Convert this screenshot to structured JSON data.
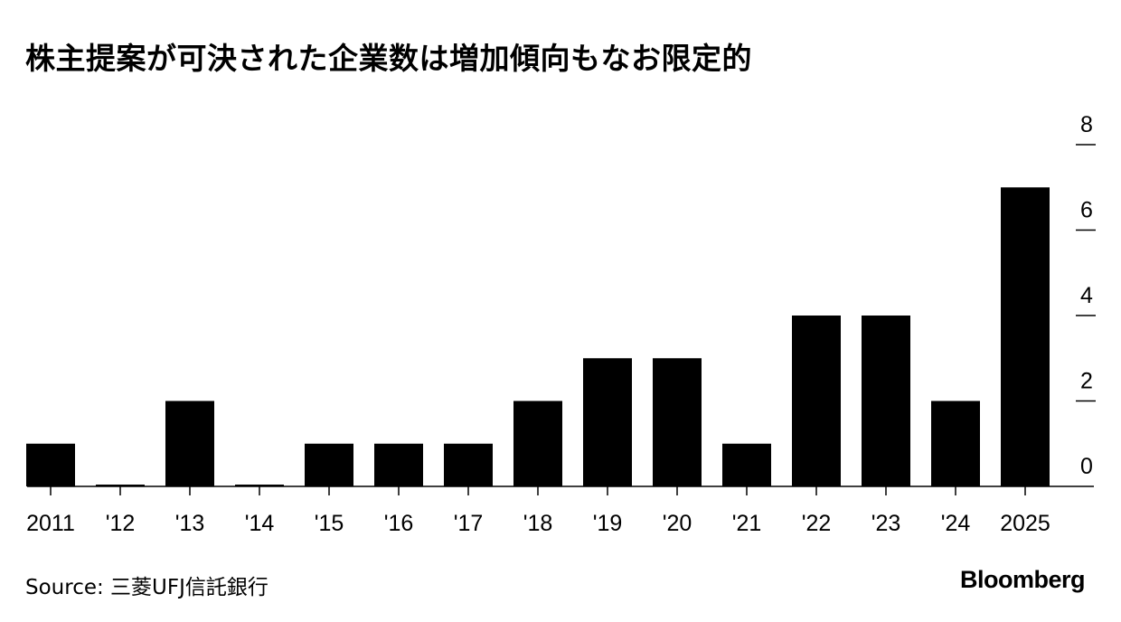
{
  "title": "株主提案が可決された企業数は増加傾向もなお限定的",
  "source": "Source: 三菱UFJ信託銀行",
  "logo": "Bloomberg",
  "chart_data": {
    "type": "bar",
    "title": "株主提案が可決された企業数は増加傾向もなお限定的",
    "categories": [
      "2011",
      "'12",
      "'13",
      "'14",
      "'15",
      "'16",
      "'17",
      "'18",
      "'19",
      "'20",
      "'21",
      "'22",
      "'23",
      "'24",
      "2025"
    ],
    "values": [
      1,
      0,
      2,
      0,
      1,
      1,
      1,
      2,
      3,
      3,
      1,
      4,
      4,
      2,
      7
    ],
    "ylim": [
      0,
      8
    ],
    "yticks": [
      "0",
      "2",
      "4",
      "6",
      "8"
    ],
    "xlabel": "",
    "ylabel": "",
    "grid": false,
    "y_axis_side": "right",
    "bar_color": "#000000"
  }
}
